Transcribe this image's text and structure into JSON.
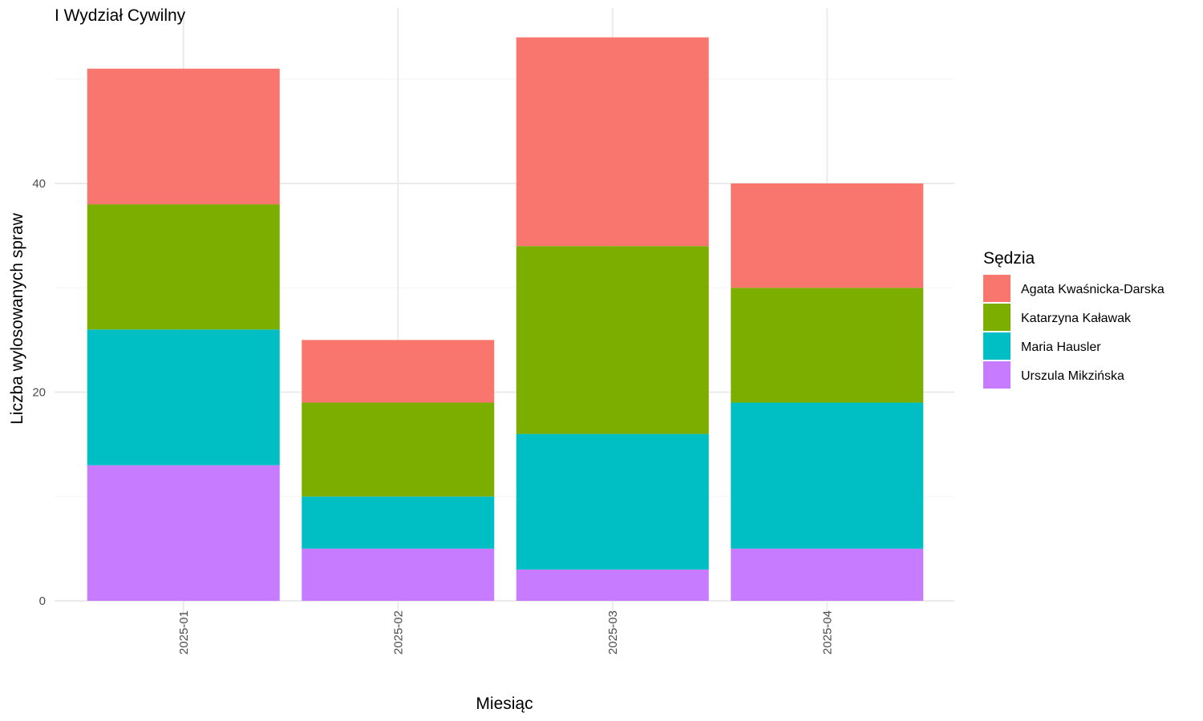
{
  "chart_data": {
    "type": "bar",
    "stacked": true,
    "title": "I Wydział Cywilny",
    "xlabel": "Miesiąc",
    "ylabel": "Liczba wylosowanych spraw",
    "categories": [
      "2025-01",
      "2025-02",
      "2025-03",
      "2025-04"
    ],
    "ylim": [
      0,
      56
    ],
    "yticks": [
      0,
      20,
      40
    ],
    "grid": true,
    "legend": {
      "title": "Sędzia",
      "placement": "right"
    },
    "series": [
      {
        "name": "Urszula Mikzińska",
        "color": "#C77CFF",
        "values": [
          13,
          5,
          3,
          5
        ]
      },
      {
        "name": "Maria Hausler",
        "color": "#00BFC4",
        "values": [
          13,
          5,
          13,
          14
        ]
      },
      {
        "name": "Katarzyna Kaławak",
        "color": "#7CAE00",
        "values": [
          12,
          9,
          18,
          11
        ]
      },
      {
        "name": "Agata Kwaśnicka-Darska",
        "color": "#F8766D",
        "values": [
          13,
          6,
          20,
          10
        ]
      }
    ],
    "legend_order": [
      "Agata Kwaśnicka-Darska",
      "Katarzyna Kaławak",
      "Maria Hausler",
      "Urszula Mikzińska"
    ]
  }
}
